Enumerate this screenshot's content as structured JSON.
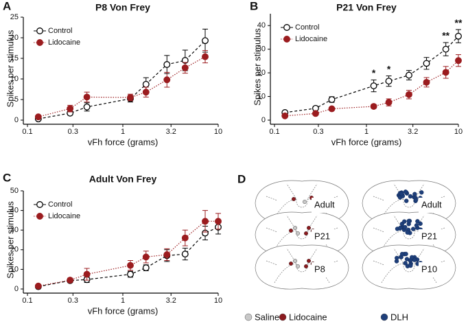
{
  "chart_data": [
    {
      "type": "line",
      "panel_label": "A",
      "title": "P8 Von Frey",
      "xlabel": "vFh force (grams)",
      "ylabel": "Spikes per stimulus",
      "xscale": "log",
      "x": [
        0.13,
        0.28,
        0.42,
        1.2,
        1.75,
        2.9,
        4.5,
        7.3,
        10
      ],
      "xlim": [
        0.1,
        10
      ],
      "xticks": [
        0.1,
        0.3,
        1,
        3.2,
        10
      ],
      "ylim": [
        0,
        25
      ],
      "yticks": [
        0,
        5,
        10,
        15,
        20,
        25
      ],
      "legend": "upper left",
      "series": [
        {
          "name": "Control",
          "color": "#000000",
          "marker_fill": "#ffffff",
          "line_style": "dashed",
          "values": [
            0.3,
            1.7,
            3.2,
            5.2,
            8.7,
            13.5,
            14.5,
            19.3,
            null
          ],
          "errors": [
            0.3,
            0.5,
            1,
            0.8,
            1.6,
            2.2,
            2.5,
            2.8,
            null
          ]
        },
        {
          "name": "Lidocaine",
          "color": "#9b1c1f",
          "marker_fill": "#9b1c1f",
          "line_style": "dotted",
          "values": [
            0.8,
            2.8,
            5.6,
            5.5,
            6.8,
            9.8,
            12.7,
            15.4,
            null
          ],
          "errors": [
            0.3,
            0.8,
            1.2,
            0.8,
            1.2,
            1.8,
            1.3,
            1.5,
            null
          ]
        }
      ]
    },
    {
      "type": "line",
      "panel_label": "B",
      "title": "P21 Von Frey",
      "xlabel": "vFh force (grams)",
      "ylabel": "Spikes per stimulus",
      "xscale": "log",
      "x": [
        0.13,
        0.28,
        0.42,
        1.2,
        1.75,
        2.9,
        4.5,
        7.3,
        10
      ],
      "xlim": [
        0.1,
        10
      ],
      "xticks": [
        0.1,
        0.3,
        1,
        3.2,
        10
      ],
      "ylim": [
        0,
        45
      ],
      "yticks": [
        0,
        10,
        20,
        30,
        40
      ],
      "legend": "upper left",
      "annotations": [
        {
          "text": "*",
          "x": 1.2
        },
        {
          "text": "*",
          "x": 1.75
        },
        {
          "text": "**",
          "x": 7.3
        },
        {
          "text": "**",
          "x": 10
        }
      ],
      "series": [
        {
          "name": "Control",
          "color": "#000000",
          "marker_fill": "#ffffff",
          "line_style": "dashed",
          "values": [
            3.2,
            5,
            8.7,
            14.5,
            16.5,
            19,
            24,
            30,
            35.5
          ],
          "errors": [
            0.5,
            0.8,
            1.2,
            2.5,
            2.2,
            2,
            2.5,
            2.8,
            2.8
          ]
        },
        {
          "name": "Lidocaine",
          "color": "#9b1c1f",
          "marker_fill": "#9b1c1f",
          "line_style": "dotted",
          "values": [
            1.8,
            2.8,
            4.8,
            5.8,
            7.5,
            10.8,
            16,
            20.2,
            25.2
          ],
          "errors": [
            0.3,
            0.5,
            0.6,
            0.8,
            1.5,
            1.8,
            2,
            2.5,
            2.5
          ]
        }
      ]
    },
    {
      "type": "line",
      "panel_label": "C",
      "title": "Adult Von Frey",
      "xlabel": "vFh force (grams)",
      "ylabel": "Spikes per stimulus",
      "xscale": "log",
      "x": [
        0.13,
        0.28,
        0.42,
        1.2,
        1.75,
        2.9,
        4.5,
        7.3,
        10
      ],
      "xlim": [
        0.1,
        10
      ],
      "xticks": [
        0.1,
        0.3,
        1,
        3.2,
        10
      ],
      "ylim": [
        0,
        50
      ],
      "yticks": [
        0,
        10,
        20,
        30,
        40,
        50
      ],
      "legend": "upper left",
      "series": [
        {
          "name": "Control",
          "color": "#000000",
          "marker_fill": "#ffffff",
          "line_style": "dashed",
          "values": [
            1.2,
            4.3,
            4.8,
            7.5,
            10.8,
            17,
            17.8,
            28.5,
            31.5
          ],
          "errors": [
            0.3,
            1,
            1.5,
            1.5,
            1.5,
            3,
            3,
            3.5,
            3.5
          ]
        },
        {
          "name": "Lidocaine",
          "color": "#9b1c1f",
          "marker_fill": "#9b1c1f",
          "line_style": "dotted",
          "values": [
            1.5,
            4.5,
            7.5,
            12,
            16.3,
            17.5,
            26,
            34.5,
            34.5
          ],
          "errors": [
            0.5,
            1,
            3,
            2.5,
            3,
            3,
            4,
            5.5,
            4
          ]
        }
      ]
    }
  ],
  "panel_d": {
    "panel_label": "D",
    "left_sections": [
      "Adult",
      "P21",
      "P8"
    ],
    "right_sections": [
      "Adult",
      "P21",
      "P10"
    ],
    "legend": [
      {
        "name": "Saline",
        "color": "#c8c8c8"
      },
      {
        "name": "Lidocaine",
        "color": "#8b1a1e"
      },
      {
        "name": "DLH",
        "color": "#1e3f7a"
      }
    ]
  }
}
